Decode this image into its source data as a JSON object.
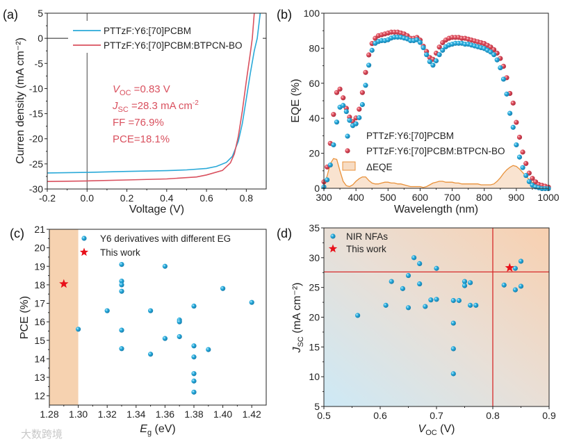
{
  "colors": {
    "blue": "#29a9d8",
    "red": "#d9505e",
    "delta": "#e8913a",
    "delta_fill": "#f7dcc4",
    "star": "#e8101a",
    "shade": "#f6d2b0"
  },
  "watermark": "大数跨境",
  "chart_data": [
    {
      "id": "a",
      "panel_label": "(a)",
      "type": "line",
      "xlabel": "Voltage (V)",
      "ylabel": "Curren density (mA cm⁻²)",
      "xlim": [
        -0.2,
        0.9
      ],
      "ylim": [
        -30,
        5
      ],
      "xticks": [
        -0.2,
        0,
        0.2,
        0.4,
        0.6,
        0.8
      ],
      "xtick_labels": [
        "-0.2",
        "0.0",
        "0.2",
        "0.4",
        "0.6",
        "0.8"
      ],
      "yticks": [
        -30,
        -25,
        -20,
        -15,
        -10,
        -5,
        0,
        5
      ],
      "ytick_labels": [
        "-30",
        "-25",
        "-20",
        "-15",
        "-10",
        "-5",
        "0",
        "5"
      ],
      "series": [
        {
          "name": "PTTzF:Y6:[70]PCBM",
          "color": "blue",
          "x": [
            -0.2,
            0,
            0.2,
            0.4,
            0.5,
            0.6,
            0.65,
            0.7,
            0.73,
            0.76,
            0.78,
            0.8,
            0.82,
            0.84,
            0.855,
            0.87
          ],
          "y": [
            -26.8,
            -26.7,
            -26.5,
            -26.35,
            -26.2,
            -25.9,
            -25.5,
            -24.7,
            -23.5,
            -20.5,
            -17,
            -12,
            -7,
            -2.5,
            0,
            5
          ]
        },
        {
          "name": "PTTzF:Y6:[70]PCBM:BTPCN-BO",
          "color": "red",
          "x": [
            -0.2,
            0,
            0.2,
            0.4,
            0.55,
            0.6,
            0.68,
            0.72,
            0.74,
            0.76,
            0.78,
            0.8,
            0.82,
            0.83,
            0.84
          ],
          "y": [
            -28.5,
            -28.4,
            -28.2,
            -28,
            -27.6,
            -27.2,
            -26.3,
            -24.8,
            -23,
            -19.5,
            -14.5,
            -8.5,
            -3,
            0,
            5
          ]
        }
      ],
      "annotations": [
        {
          "sym": "V",
          "sub": "OC",
          "text": " =0.83 V"
        },
        {
          "sym": "J",
          "sub": "SC",
          "text": " =28.3 mA cm",
          "sup": "-2"
        },
        {
          "text": "FF   =76.9%"
        },
        {
          "text": "PCE=18.1%"
        }
      ]
    },
    {
      "id": "b",
      "panel_label": "(b)",
      "type": "scatter",
      "xlabel": "Wavelength (nm)",
      "ylabel": "EQE (%)",
      "xlim": [
        300,
        1000
      ],
      "ylim": [
        0,
        100
      ],
      "xticks": [
        300,
        400,
        500,
        600,
        700,
        800,
        900,
        1000
      ],
      "xtick_labels": [
        "300",
        "400",
        "500",
        "600",
        "700",
        "800",
        "900",
        "1000"
      ],
      "yticks": [
        0,
        20,
        40,
        60,
        80,
        100
      ],
      "ytick_labels": [
        "0",
        "20",
        "40",
        "60",
        "80",
        "100"
      ],
      "x": [
        300,
        310,
        320,
        330,
        340,
        350,
        360,
        370,
        380,
        390,
        400,
        410,
        420,
        430,
        440,
        450,
        460,
        470,
        480,
        490,
        500,
        510,
        520,
        530,
        540,
        550,
        560,
        570,
        580,
        590,
        600,
        610,
        620,
        630,
        640,
        650,
        660,
        670,
        680,
        690,
        700,
        710,
        720,
        730,
        740,
        750,
        760,
        770,
        780,
        790,
        800,
        810,
        820,
        830,
        840,
        850,
        860,
        870,
        880,
        890,
        900,
        910,
        920,
        930,
        940,
        950,
        960,
        970,
        980,
        990,
        1000
      ],
      "series": [
        {
          "name": "PTTzF:Y6:[70]PCBM",
          "color": "blue",
          "y": [
            1,
            5,
            13.5,
            25,
            38,
            46.5,
            47.5,
            44,
            39,
            36,
            37,
            40.5,
            48,
            59,
            70.5,
            79,
            83,
            84,
            84.5,
            84.5,
            85,
            86,
            86.5,
            86.5,
            86.5,
            86,
            85.5,
            84.5,
            84.5,
            85,
            83.5,
            80.5,
            76.5,
            72.5,
            70.5,
            73,
            76.5,
            79,
            81,
            82,
            82.5,
            83,
            83,
            83,
            82.5,
            82.5,
            82,
            81.5,
            81,
            80.5,
            80,
            79,
            78,
            76.5,
            73.5,
            69,
            62.5,
            54,
            43,
            35,
            25,
            18,
            12,
            7.5,
            4,
            2,
            1,
            0.5,
            0,
            0,
            0
          ]
        },
        {
          "name": "PTTzF:Y6:[70]PCBM:BTPCN-BO",
          "color": "red",
          "y": [
            3.5,
            12,
            25.5,
            42,
            54.5,
            56.5,
            51.5,
            45.5,
            40.5,
            38,
            40,
            45,
            54.5,
            66,
            76,
            82.5,
            85.5,
            87,
            87.5,
            88,
            88.5,
            89,
            89,
            89,
            88.5,
            88,
            87,
            85.5,
            85.5,
            86,
            84.5,
            81,
            78,
            74.5,
            73.5,
            77,
            80.5,
            83,
            84.5,
            85.5,
            86,
            86,
            86,
            85.5,
            85.5,
            85,
            84.5,
            84,
            83.5,
            83,
            82.5,
            81.5,
            80.5,
            79,
            77,
            74,
            69.5,
            63,
            54,
            48.5,
            37.5,
            29,
            20.5,
            14,
            8.5,
            5.5,
            3.5,
            2,
            1.5,
            1,
            0.5
          ]
        },
        {
          "name": "ΔEQE",
          "color": "delta",
          "type": "area",
          "y": [
            2,
            7,
            14,
            17,
            16.5,
            10,
            4,
            1.5,
            1,
            2,
            4,
            5.5,
            6.5,
            6.5,
            4.5,
            3,
            2.5,
            2.5,
            3,
            3.5,
            3.5,
            3,
            3,
            2.5,
            2.5,
            2,
            1.5,
            1,
            1,
            1,
            1,
            0.5,
            1,
            2,
            3,
            3.5,
            4,
            4,
            3.5,
            3.5,
            3.5,
            3,
            3,
            2.5,
            2.5,
            2.5,
            2.5,
            2.5,
            2.5,
            2,
            2,
            2,
            2,
            2.5,
            4,
            6,
            8.5,
            10.5,
            12,
            13,
            12.5,
            11,
            9,
            7,
            5,
            3.5,
            2,
            1,
            0.5,
            0.3,
            0.2
          ]
        }
      ]
    },
    {
      "id": "c",
      "panel_label": "(c)",
      "type": "scatter",
      "xlabel": "E",
      "xlabel_sub": "g",
      "xlabel_unit": " (eV)",
      "ylabel": "PCE (%)",
      "xlim": [
        1.28,
        1.43
      ],
      "ylim": [
        11.5,
        21
      ],
      "xticks": [
        1.28,
        1.3,
        1.32,
        1.34,
        1.36,
        1.38,
        1.4,
        1.42
      ],
      "xtick_labels": [
        "1.28",
        "1.30",
        "1.32",
        "1.34",
        "1.36",
        "1.38",
        "1.40",
        "1.42"
      ],
      "yticks": [
        12,
        13,
        14,
        15,
        16,
        17,
        18,
        19,
        20,
        21
      ],
      "ytick_labels": [
        "12",
        "13",
        "14",
        "15",
        "16",
        "17",
        "18",
        "19",
        "20",
        "21"
      ],
      "shaded_x_range": [
        1.28,
        1.3
      ],
      "series": [
        {
          "name": "Y6 derivatives with different EG",
          "color": "blue",
          "marker": "dot",
          "x": [
            1.33,
            1.36,
            1.33,
            1.33,
            1.33,
            1.4,
            1.42,
            1.38,
            1.32,
            1.35,
            1.37,
            1.37,
            1.3,
            1.33,
            1.37,
            1.36,
            1.38,
            1.33,
            1.39,
            1.35,
            1.38,
            1.38,
            1.38,
            1.38
          ],
          "y": [
            19.1,
            19.0,
            18.2,
            18.0,
            17.65,
            17.8,
            17.05,
            16.85,
            16.6,
            16.6,
            16.1,
            16.0,
            15.6,
            15.55,
            15.2,
            15.1,
            14.7,
            14.55,
            14.5,
            14.25,
            14.1,
            13.2,
            12.8,
            12.2
          ]
        },
        {
          "name": "This work",
          "color": "star",
          "marker": "star",
          "x": [
            1.29
          ],
          "y": [
            18.05
          ]
        }
      ]
    },
    {
      "id": "d",
      "panel_label": "(d)",
      "type": "scatter",
      "xlabel": "V",
      "xlabel_sub": "OC",
      "xlabel_unit": " (V)",
      "ylabel": "J",
      "ylabel_sub": "SC",
      "ylabel_unit": " (mA cm⁻²)",
      "xlim": [
        0.5,
        0.9
      ],
      "ylim": [
        5,
        35
      ],
      "xticks": [
        0.5,
        0.6,
        0.7,
        0.8,
        0.9
      ],
      "xtick_labels": [
        "0.5",
        "0.6",
        "0.7",
        "0.8",
        "0.9"
      ],
      "yticks": [
        5,
        10,
        15,
        20,
        25,
        30,
        35
      ],
      "ytick_labels": [
        "5",
        "10",
        "15",
        "20",
        "25",
        "30",
        "35"
      ],
      "reference_lines": {
        "x": 0.8,
        "y": 27.6
      },
      "series": [
        {
          "name": "NIR NFAs",
          "color": "blue",
          "marker": "dot",
          "x": [
            0.56,
            0.61,
            0.62,
            0.64,
            0.65,
            0.65,
            0.66,
            0.67,
            0.67,
            0.68,
            0.69,
            0.7,
            0.7,
            0.73,
            0.73,
            0.73,
            0.73,
            0.74,
            0.75,
            0.75,
            0.76,
            0.76,
            0.77,
            0.82,
            0.84,
            0.84,
            0.85,
            0.85
          ],
          "y": [
            20.3,
            22,
            26,
            24.8,
            27,
            21.6,
            30,
            29,
            25.6,
            21.8,
            22.9,
            28.2,
            23,
            22.8,
            19,
            14.7,
            10.5,
            22.8,
            26,
            25.3,
            25.8,
            22,
            22,
            25.4,
            28.2,
            24.6,
            29.4,
            25.2
          ]
        },
        {
          "name": "This work",
          "color": "star",
          "marker": "star",
          "x": [
            0.83
          ],
          "y": [
            28.3
          ]
        }
      ]
    }
  ]
}
